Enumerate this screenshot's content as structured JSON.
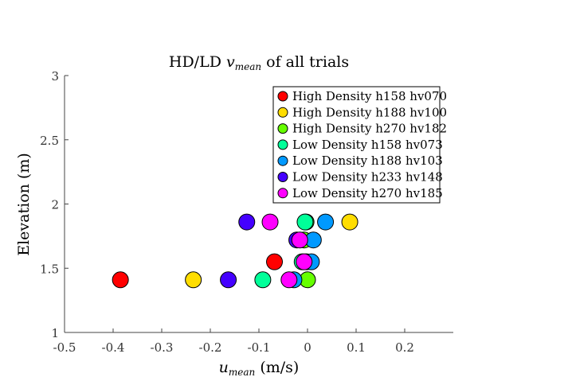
{
  "chart_data": {
    "type": "scatter",
    "title_prefix": "HD/LD ",
    "title_var": "v",
    "title_sub": "mean",
    "title_suffix": " of all trials",
    "xlabel_var": "u",
    "xlabel_sub": "mean",
    "xlabel_suffix": " (m/s)",
    "ylabel": "Elevation (m)",
    "xlim": [
      -0.5,
      0.3
    ],
    "ylim": [
      1,
      3
    ],
    "xticks": [
      "-0.5",
      "-0.4",
      "-0.3",
      "-0.2",
      "-0.1",
      "0",
      "0.1",
      "0.2"
    ],
    "xtick_values": [
      -0.5,
      -0.4,
      -0.3,
      -0.2,
      -0.1,
      0,
      0.1,
      0.2
    ],
    "yticks": [
      "1",
      "1.5",
      "2",
      "2.5",
      "3"
    ],
    "ytick_values": [
      1,
      1.5,
      2,
      2.5,
      3
    ],
    "grid": false,
    "legend_position": "top-right",
    "series": [
      {
        "name": "High Density h158 hv070",
        "color": "#ff0000",
        "points": [
          [
            -0.385,
            1.41
          ],
          [
            -0.068,
            1.55
          ]
        ]
      },
      {
        "name": "High Density h188 hv100",
        "color": "#ffdd00",
        "points": [
          [
            -0.235,
            1.41
          ],
          [
            0.087,
            1.86
          ],
          [
            -0.002,
            1.55
          ]
        ]
      },
      {
        "name": "High Density h270 hv182",
        "color": "#66ff00",
        "points": [
          [
            0.0,
            1.41
          ],
          [
            -0.003,
            1.86
          ],
          [
            -0.007,
            1.72
          ]
        ]
      },
      {
        "name": "Low Density h158 hv073",
        "color": "#00ff99",
        "points": [
          [
            -0.092,
            1.41
          ],
          [
            -0.005,
            1.86
          ],
          [
            -0.011,
            1.55
          ]
        ]
      },
      {
        "name": "Low Density h188 hv103",
        "color": "#0099ff",
        "points": [
          [
            -0.028,
            1.41
          ],
          [
            0.037,
            1.86
          ],
          [
            0.012,
            1.72
          ],
          [
            0.008,
            1.55
          ]
        ]
      },
      {
        "name": "Low Density h233 hv148",
        "color": "#4400ff",
        "points": [
          [
            -0.163,
            1.41
          ],
          [
            -0.125,
            1.86
          ],
          [
            -0.022,
            1.72
          ]
        ]
      },
      {
        "name": "Low Density h270 hv185",
        "color": "#ff00ff",
        "points": [
          [
            -0.038,
            1.41
          ],
          [
            -0.077,
            1.86
          ],
          [
            -0.016,
            1.72
          ],
          [
            -0.007,
            1.55
          ]
        ]
      }
    ]
  }
}
